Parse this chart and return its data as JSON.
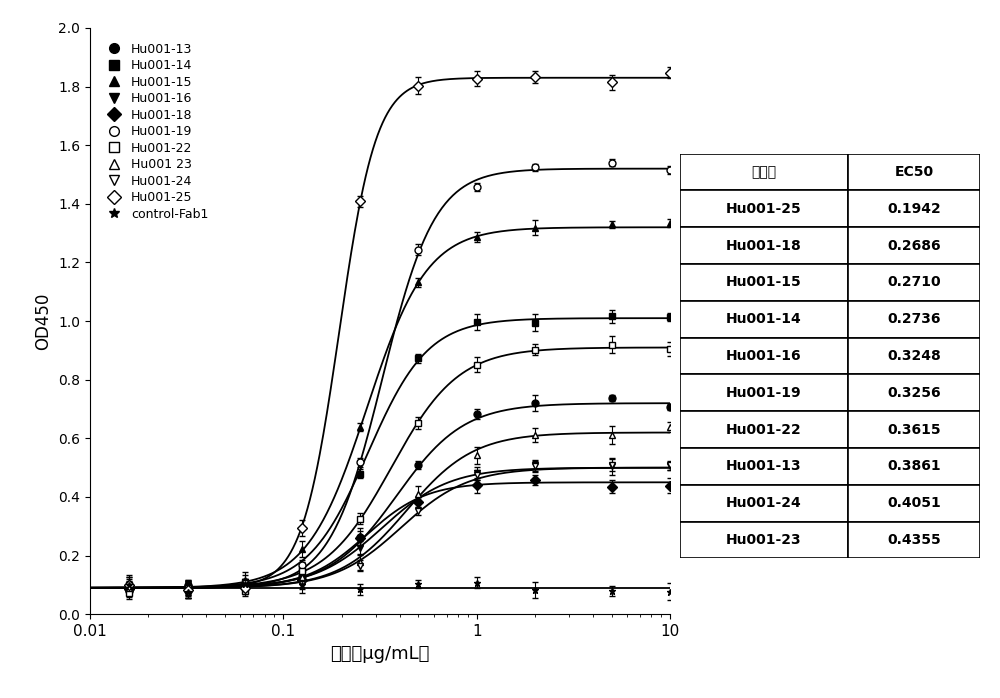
{
  "series": [
    {
      "name": "Hu001-13",
      "marker": "o",
      "filled": true,
      "ec50": 0.3861,
      "bottom": 0.09,
      "top": 0.72,
      "hillslope": 2.5
    },
    {
      "name": "Hu001-14",
      "marker": "s",
      "filled": true,
      "ec50": 0.2736,
      "bottom": 0.09,
      "top": 1.01,
      "hillslope": 2.8
    },
    {
      "name": "Hu001-15",
      "marker": "^",
      "filled": true,
      "ec50": 0.271,
      "bottom": 0.09,
      "top": 1.32,
      "hillslope": 2.8
    },
    {
      "name": "Hu001-16",
      "marker": "v",
      "filled": true,
      "ec50": 0.3248,
      "bottom": 0.09,
      "top": 0.5,
      "hillslope": 2.5
    },
    {
      "name": "Hu001-18",
      "marker": "D",
      "filled": true,
      "ec50": 0.2686,
      "bottom": 0.09,
      "top": 0.45,
      "hillslope": 2.8
    },
    {
      "name": "Hu001-19",
      "marker": "o",
      "filled": false,
      "ec50": 0.3256,
      "bottom": 0.09,
      "top": 1.52,
      "hillslope": 3.2
    },
    {
      "name": "Hu001-22",
      "marker": "s",
      "filled": false,
      "ec50": 0.3615,
      "bottom": 0.09,
      "top": 0.91,
      "hillslope": 2.5
    },
    {
      "name": "Hu001 23",
      "marker": "^",
      "filled": false,
      "ec50": 0.4355,
      "bottom": 0.09,
      "top": 0.62,
      "hillslope": 2.5
    },
    {
      "name": "Hu001-24",
      "marker": "v",
      "filled": false,
      "ec50": 0.4051,
      "bottom": 0.09,
      "top": 0.5,
      "hillslope": 2.5
    },
    {
      "name": "Hu001-25",
      "marker": "D",
      "filled": false,
      "ec50": 0.1942,
      "bottom": 0.09,
      "top": 1.83,
      "hillslope": 4.5
    },
    {
      "name": "control-Fab1",
      "marker": "*",
      "filled": true,
      "ec50": 1000.0,
      "bottom": 0.09,
      "top": 0.09,
      "hillslope": 1.0
    }
  ],
  "x_data_points": [
    0.016,
    0.032,
    0.063,
    0.125,
    0.25,
    0.5,
    1.0,
    2.0,
    5.0,
    10.0
  ],
  "xlim": [
    0.01,
    10.0
  ],
  "ylim": [
    0.0,
    2.0
  ],
  "xlabel": "浓度（μg/mL）",
  "ylabel": "OD450",
  "table_header": [
    "克隆号",
    "EC50"
  ],
  "table_data": [
    [
      "Hu001-25",
      "0.1942"
    ],
    [
      "Hu001-18",
      "0.2686"
    ],
    [
      "Hu001-15",
      "0.2710"
    ],
    [
      "Hu001-14",
      "0.2736"
    ],
    [
      "Hu001-16",
      "0.3248"
    ],
    [
      "Hu001-19",
      "0.3256"
    ],
    [
      "Hu001-22",
      "0.3615"
    ],
    [
      "Hu001-13",
      "0.3861"
    ],
    [
      "Hu001-24",
      "0.4051"
    ],
    [
      "Hu001-23",
      "0.4355"
    ]
  ]
}
